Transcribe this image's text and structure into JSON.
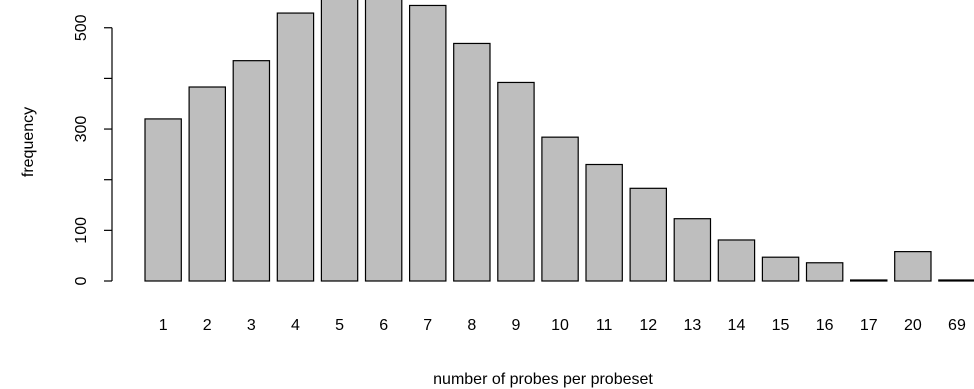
{
  "chart_data": {
    "type": "bar",
    "title": "",
    "xlabel": "number of probes per probeset",
    "ylabel": "frequency",
    "categories": [
      "1",
      "2",
      "3",
      "4",
      "5",
      "6",
      "7",
      "8",
      "9",
      "10",
      "11",
      "12",
      "13",
      "14",
      "15",
      "16",
      "17",
      "20",
      "69"
    ],
    "values": [
      320,
      383,
      435,
      529,
      577,
      580,
      544,
      469,
      392,
      284,
      230,
      183,
      123,
      81,
      47,
      36,
      2,
      58,
      2
    ],
    "yticks": [
      0,
      100,
      300,
      500
    ],
    "ylim": [
      0,
      580
    ],
    "grid": false,
    "bar_color": "#bebebe",
    "bar_edge_color": "#000000"
  }
}
